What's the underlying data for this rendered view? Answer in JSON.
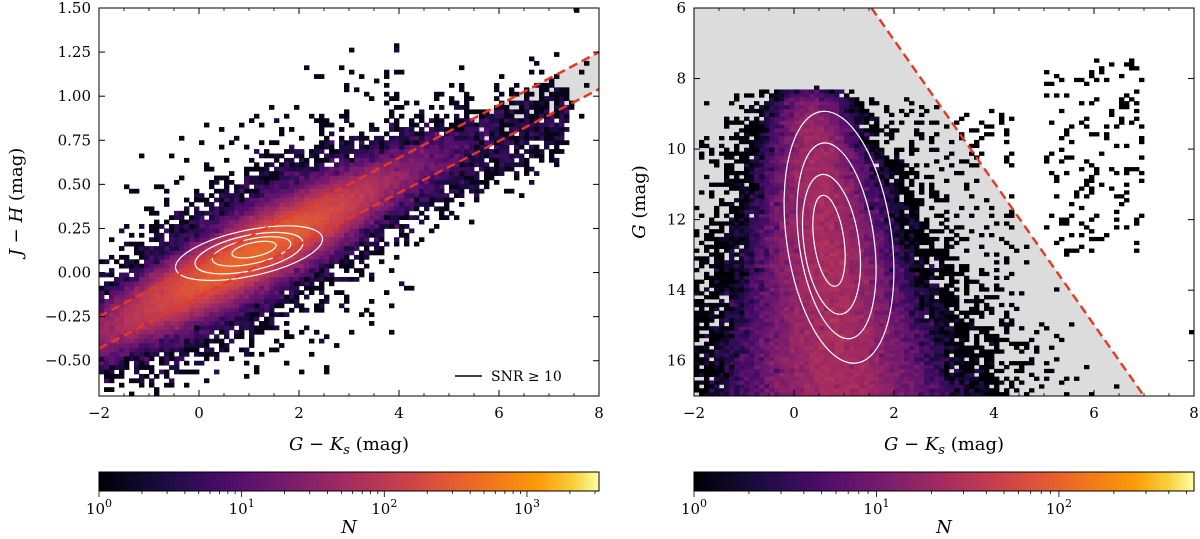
{
  "figure_title": "",
  "colormap": "inferno",
  "chart_data": [
    {
      "type": "heatmap",
      "title": "",
      "xlabel_pre": "G − K",
      "xlabel_sub": "s",
      "xlabel_post": " (mag)",
      "ylabel_pre": "J − H",
      "ylabel_post": " (mag)",
      "xlim": [
        -2,
        8
      ],
      "ylim": [
        -0.7,
        1.5
      ],
      "x_ticks": [
        -2,
        0,
        2,
        4,
        6,
        8
      ],
      "x_tick_labels": [
        "−2",
        "0",
        "2",
        "4",
        "6",
        "8"
      ],
      "y_ticks": [
        -0.5,
        -0.25,
        0.0,
        0.25,
        0.5,
        0.75,
        1.0,
        1.25,
        1.5
      ],
      "y_tick_labels": [
        "−0.50",
        "−0.25",
        "0.00",
        "0.25",
        "0.50",
        "0.75",
        "1.00",
        "1.25",
        "1.50"
      ],
      "selection_band": {
        "lower": [
          [
            -2,
            -0.43
          ],
          [
            8,
            1.04
          ]
        ],
        "upper": [
          [
            -2,
            -0.25
          ],
          [
            8,
            1.25
          ]
        ],
        "fill": "#dcdcdc",
        "line_color": "#e8381f"
      },
      "density_core": {
        "center": [
          1.0,
          0.1
        ],
        "sigma_along": 1.3,
        "sigma_across": 0.09,
        "slope": 0.147
      },
      "contours": [
        {
          "level": "outer",
          "center": [
            1.0,
            0.11
          ],
          "semi_axes": [
            1.5,
            0.13
          ],
          "slope_deg": 12
        },
        {
          "level": "mid",
          "center": [
            1.0,
            0.11
          ],
          "semi_axes": [
            1.1,
            0.1
          ],
          "slope_deg": 12
        },
        {
          "level": "inner",
          "center": [
            1.05,
            0.12
          ],
          "semi_axes": [
            0.8,
            0.07
          ],
          "slope_deg": 12
        },
        {
          "level": "core",
          "center": [
            1.1,
            0.13
          ],
          "semi_axes": [
            0.45,
            0.04
          ],
          "slope_deg": 12
        }
      ],
      "legend": {
        "label": "SNR ≥ 10",
        "placement": "lower-right"
      },
      "colorbar": {
        "label": "N",
        "scale": "log",
        "range": [
          1,
          3200
        ],
        "ticks": [
          1,
          10,
          100,
          1000
        ],
        "tick_bases": [
          "10",
          "10",
          "10",
          "10"
        ],
        "tick_exps": [
          "0",
          "1",
          "2",
          "3"
        ]
      }
    },
    {
      "type": "heatmap",
      "title": "",
      "xlabel_pre": "G − K",
      "xlabel_sub": "s",
      "xlabel_post": " (mag)",
      "ylabel_pre": "G",
      "ylabel_post": " (mag)",
      "xlim": [
        -2,
        8
      ],
      "ylim": [
        17,
        6
      ],
      "y_inverted": true,
      "x_ticks": [
        -2,
        0,
        2,
        4,
        6,
        8
      ],
      "x_tick_labels": [
        "−2",
        "0",
        "2",
        "4",
        "6",
        "8"
      ],
      "y_ticks": [
        6,
        8,
        10,
        12,
        14,
        16
      ],
      "y_tick_labels": [
        "6",
        "8",
        "10",
        "12",
        "14",
        "16"
      ],
      "selection_region": {
        "boundary": [
          [
            1.55,
            6
          ],
          [
            7.0,
            17
          ]
        ],
        "fill": "#dcdcdc",
        "line_color": "#e8381f"
      },
      "density_core": {
        "center": [
          0.8,
          12.7
        ],
        "spread_color": 0.55,
        "spread_mag": 2.1
      },
      "contours": [
        {
          "level": "outer",
          "center": [
            0.9,
            12.5
          ],
          "semi_axes": [
            1.05,
            3.6
          ],
          "tilt_deg": -8
        },
        {
          "level": "mid",
          "center": [
            0.85,
            12.6
          ],
          "semi_axes": [
            0.75,
            2.8
          ],
          "tilt_deg": -8
        },
        {
          "level": "inner",
          "center": [
            0.75,
            12.7
          ],
          "semi_axes": [
            0.55,
            2.0
          ],
          "tilt_deg": -8
        },
        {
          "level": "core",
          "center": [
            0.7,
            12.6
          ],
          "semi_axes": [
            0.3,
            1.3
          ],
          "tilt_deg": -8
        }
      ],
      "colorbar": {
        "label": "N",
        "scale": "log",
        "range": [
          1,
          550
        ],
        "ticks": [
          1,
          10,
          100
        ],
        "tick_bases": [
          "10",
          "10",
          "10"
        ],
        "tick_exps": [
          "0",
          "1",
          "2"
        ]
      }
    }
  ]
}
